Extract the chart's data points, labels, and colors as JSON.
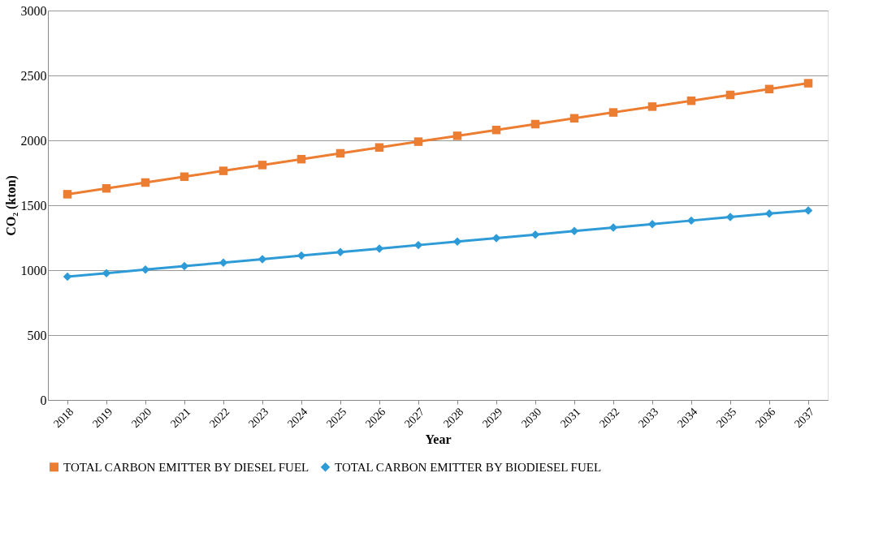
{
  "chart_data": {
    "type": "line",
    "xlabel": "Year",
    "ylabel": "CO₂ (kton)",
    "categories": [
      "2018",
      "2019",
      "2020",
      "2021",
      "2022",
      "2023",
      "2024",
      "2025",
      "2026",
      "2027",
      "2028",
      "2029",
      "2030",
      "2031",
      "2032",
      "2033",
      "2034",
      "2035",
      "2036",
      "2037"
    ],
    "series": [
      {
        "name": "TOTAL CARBON EMITTER BY DIESEL FUEL",
        "color": "#ed7d31",
        "marker": "square",
        "values": [
          1585,
          1630,
          1675,
          1720,
          1765,
          1810,
          1855,
          1900,
          1945,
          1990,
          2035,
          2080,
          2125,
          2170,
          2215,
          2260,
          2305,
          2350,
          2395,
          2440
        ]
      },
      {
        "name": "TOTAL CARBON EMITTER BY BIODIESEL FUEL",
        "color": "#2e9bd6",
        "marker": "diamond",
        "values": [
          950,
          977,
          1004,
          1031,
          1058,
          1085,
          1112,
          1139,
          1166,
          1193,
          1220,
          1247,
          1274,
          1301,
          1328,
          1355,
          1382,
          1409,
          1436,
          1460
        ]
      }
    ],
    "ylim": [
      0,
      3000
    ],
    "yticks": [
      0,
      500,
      1000,
      1500,
      2000,
      2500,
      3000
    ],
    "grid": "y",
    "legend": "bottom",
    "line_style": "solid"
  }
}
